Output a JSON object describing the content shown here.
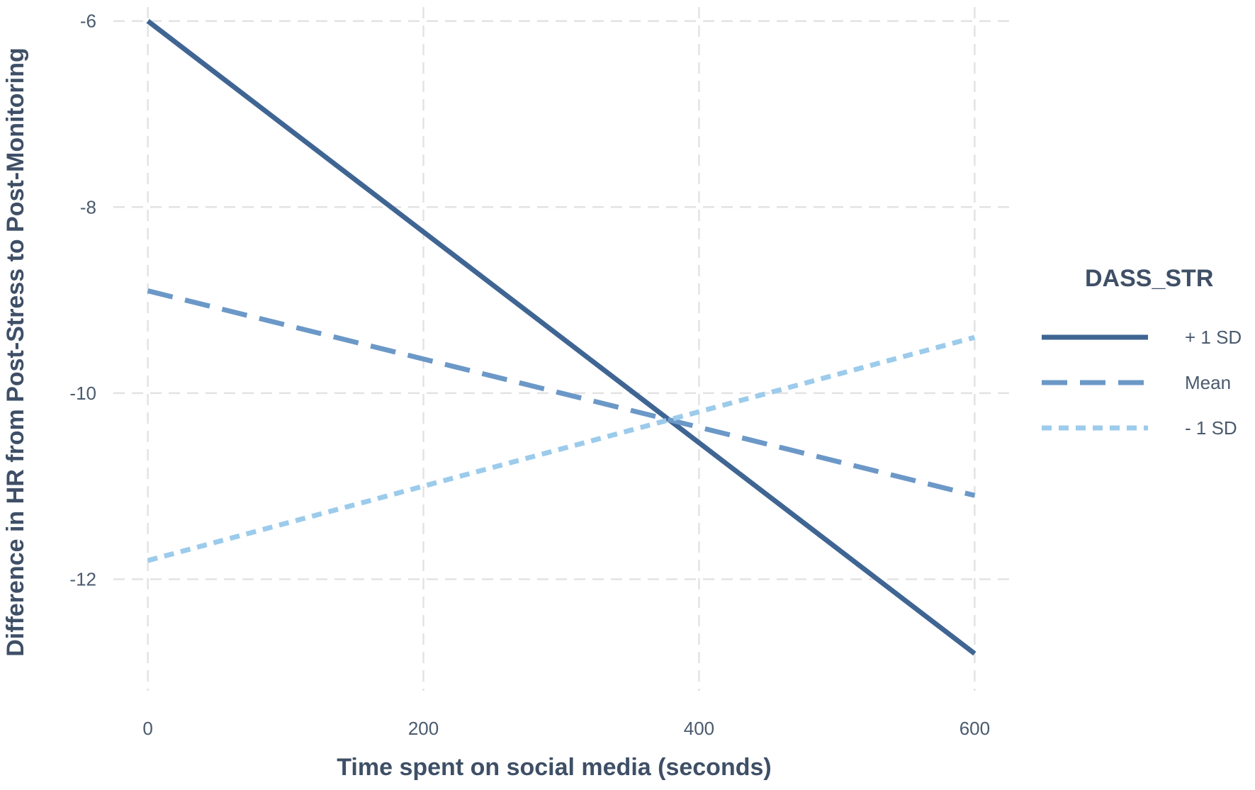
{
  "chart_data": {
    "type": "line",
    "title": "",
    "xlabel": "Time spent on social media (seconds)",
    "ylabel": "Difference in HR from Post-Stress to Post-Monitoring",
    "xlim": [
      -25,
      625
    ],
    "ylim": [
      -13.2,
      -5.85
    ],
    "x_ticks": [
      0,
      200,
      400,
      600
    ],
    "y_ticks": [
      -6,
      -8,
      -10,
      -12
    ],
    "grid": true,
    "legend": {
      "title": "DASS_STR",
      "position": "right"
    },
    "series": [
      {
        "name": "+ 1 SD",
        "x": [
          0,
          600
        ],
        "y": [
          -6.0,
          -12.8
        ],
        "color": "#3f6593",
        "style": "solid"
      },
      {
        "name": "Mean",
        "x": [
          0,
          600
        ],
        "y": [
          -8.9,
          -11.1
        ],
        "color": "#6b98c7",
        "style": "dashed"
      },
      {
        "name": "- 1 SD",
        "x": [
          0,
          600
        ],
        "y": [
          -11.8,
          -9.4
        ],
        "color": "#9ccbeb",
        "style": "dotted"
      }
    ]
  }
}
